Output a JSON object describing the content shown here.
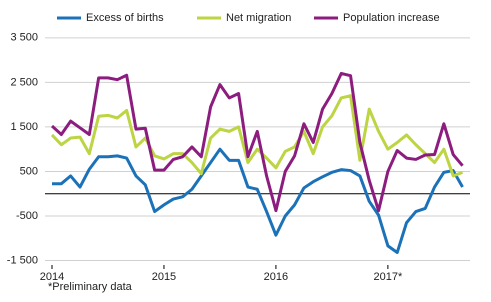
{
  "chart_data": {
    "type": "line",
    "categories": [
      "2014",
      null,
      null,
      null,
      null,
      null,
      null,
      null,
      null,
      null,
      null,
      null,
      "2015",
      null,
      null,
      null,
      null,
      null,
      null,
      null,
      null,
      null,
      null,
      null,
      "2016",
      null,
      null,
      null,
      null,
      null,
      null,
      null,
      null,
      null,
      null,
      null,
      "2017*",
      null,
      null,
      null,
      null,
      null,
      null,
      null,
      null
    ],
    "series": [
      {
        "name": "Excess of births",
        "color": "#1c72b8",
        "values": [
          225,
          225,
          400,
          150,
          550,
          830,
          830,
          850,
          800,
          400,
          200,
          -400,
          -250,
          -120,
          -70,
          100,
          400,
          700,
          1000,
          750,
          750,
          150,
          100,
          -400,
          -930,
          -500,
          -250,
          130,
          270,
          380,
          480,
          540,
          520,
          400,
          -170,
          -480,
          -1170,
          -1320,
          -650,
          -400,
          -330,
          150,
          480,
          520,
          150
        ]
      },
      {
        "name": "Net migration",
        "color": "#bdd443",
        "values": [
          1320,
          1100,
          1250,
          1270,
          900,
          1740,
          1760,
          1700,
          1870,
          1050,
          1250,
          850,
          780,
          900,
          900,
          700,
          450,
          1250,
          1450,
          1400,
          1500,
          700,
          1000,
          800,
          580,
          950,
          1050,
          1400,
          900,
          1500,
          1750,
          2150,
          2200,
          750,
          1900,
          1400,
          1000,
          1150,
          1320,
          1100,
          900,
          700,
          1000,
          400,
          480
        ]
      },
      {
        "name": "Population increase",
        "color": "#8c1d7f",
        "values": [
          1520,
          1330,
          1630,
          1480,
          1330,
          2600,
          2600,
          2560,
          2660,
          1450,
          1470,
          530,
          530,
          770,
          830,
          1050,
          830,
          1950,
          2450,
          2150,
          2250,
          830,
          1400,
          400,
          -380,
          500,
          850,
          1570,
          1150,
          1900,
          2250,
          2700,
          2650,
          1150,
          300,
          -380,
          500,
          970,
          800,
          770,
          870,
          880,
          1570,
          880,
          630
        ]
      }
    ],
    "ylim": [
      -1600,
      3900
    ],
    "yticks": [
      {
        "value": 3500,
        "label": "3 500"
      },
      {
        "value": 2500,
        "label": "2 500"
      },
      {
        "value": 1500,
        "label": "1 500"
      },
      500,
      -500,
      {
        "value": -1500,
        "label": "-1 500"
      }
    ],
    "grid": true,
    "legend": "top",
    "note": "*Preliminary data"
  }
}
